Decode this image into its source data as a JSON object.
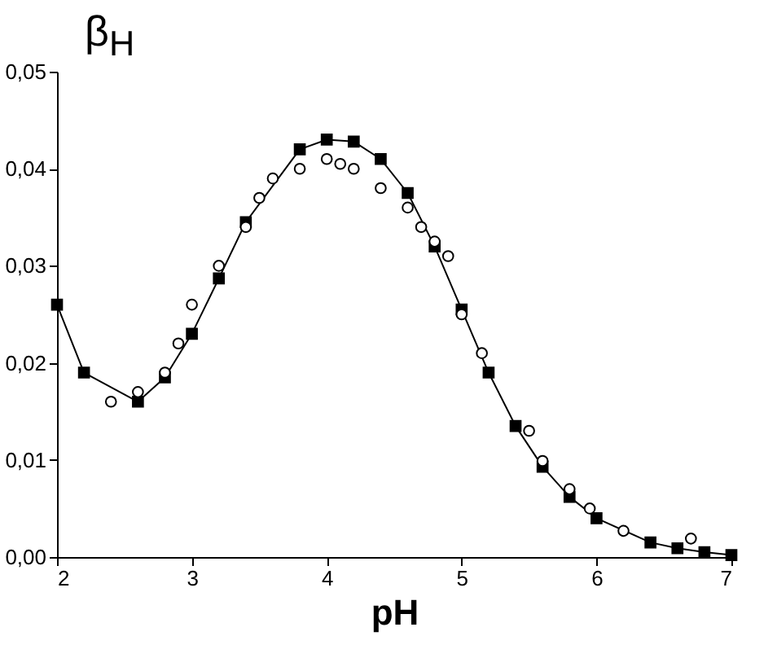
{
  "chart_data": {
    "type": "line",
    "xlabel": "pH",
    "ylabel": "β$_{H}$",
    "xlim": [
      2,
      7
    ],
    "xticks": [
      2,
      3,
      4,
      5,
      6,
      7
    ],
    "ylim": [
      0,
      0.05
    ],
    "yticks": [
      {
        "value": 0,
        "label": "0,00"
      },
      {
        "value": 0.01,
        "label": "0,01"
      },
      {
        "value": 0.02,
        "label": "0,02"
      },
      {
        "value": 0.03,
        "label": "0,03"
      },
      {
        "value": 0.04,
        "label": "0,04"
      },
      {
        "value": 0.05,
        "label": "0,05"
      }
    ],
    "grid": false,
    "legend": false,
    "series": [
      {
        "marker": "square",
        "color": "#000000",
        "x": [
          2,
          2.2,
          2.6,
          2.8,
          3,
          3.2,
          3.4,
          3.8,
          4,
          4.2,
          4.4,
          4.6,
          4.8,
          5,
          5.2,
          5.4,
          5.6,
          5.8,
          6,
          6.4,
          6.6,
          6.8,
          7
        ],
        "values": [
          0.026,
          0.019,
          0.016,
          0.0185,
          0.023,
          0.0287,
          0.0345,
          0.042,
          0.043,
          0.0428,
          0.041,
          0.0375,
          0.032,
          0.0255,
          0.019,
          0.0135,
          0.0093,
          0.0062,
          0.004,
          0.0015,
          0.0009,
          0.0005,
          0.0002
        ]
      },
      {
        "type": "scatter",
        "marker": "circle",
        "color": "#000000",
        "x": [
          2.4,
          2.6,
          2.8,
          2.9,
          3,
          3.2,
          3.4,
          3.5,
          3.6,
          3.8,
          4,
          4.1,
          4.2,
          4.4,
          4.6,
          4.7,
          4.8,
          4.9,
          5,
          5.15,
          5.5,
          5.6,
          5.8,
          5.95,
          6.2,
          6.7
        ],
        "values": [
          0.016,
          0.017,
          0.019,
          0.022,
          0.026,
          0.03,
          0.034,
          0.037,
          0.039,
          0.04,
          0.041,
          0.0405,
          0.04,
          0.038,
          0.036,
          0.034,
          0.0325,
          0.031,
          0.025,
          0.021,
          0.013,
          0.0099,
          0.007,
          0.005,
          0.0027,
          0.0019
        ]
      }
    ]
  }
}
